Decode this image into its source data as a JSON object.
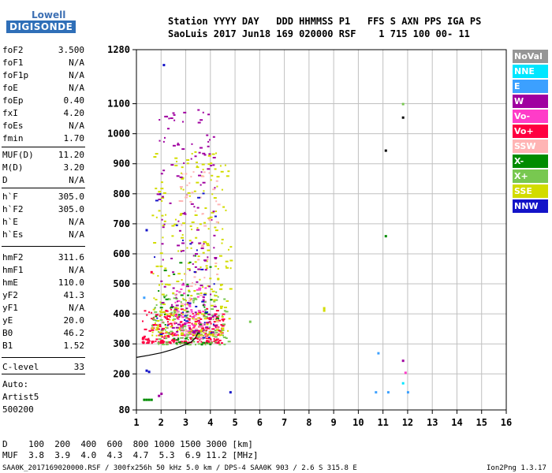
{
  "logo": {
    "line1": "Lowell",
    "line2": "DIGISONDE"
  },
  "header": {
    "row1": "Station YYYY DAY   DDD HHMMSS P1   FFS S AXN PPS IGA PS",
    "row2": "SaoLuis 2017 Jun18 169 020000 RSF    1 715 100 00- 11"
  },
  "params": [
    {
      "k": "foF2",
      "v": "3.500"
    },
    {
      "k": "foF1",
      "v": "N/A"
    },
    {
      "k": "foF1p",
      "v": "N/A"
    },
    {
      "k": "foE",
      "v": "N/A"
    },
    {
      "k": "foEp",
      "v": "0.40"
    },
    {
      "k": "fxI",
      "v": "4.20"
    },
    {
      "k": "foEs",
      "v": "N/A"
    },
    {
      "k": "fmin",
      "v": "1.70"
    },
    {
      "k": "MUF(D)",
      "v": "11.20"
    },
    {
      "k": "M(D)",
      "v": "3.20"
    },
    {
      "k": "D",
      "v": "N/A"
    },
    {
      "k": "h`F",
      "v": "305.0"
    },
    {
      "k": "h`F2",
      "v": "305.0"
    },
    {
      "k": "h`E",
      "v": "N/A"
    },
    {
      "k": "h`Es",
      "v": "N/A"
    },
    {
      "k": "hmF2",
      "v": "311.6"
    },
    {
      "k": "hmF1",
      "v": "N/A"
    },
    {
      "k": "hmE",
      "v": "110.0"
    },
    {
      "k": "yF2",
      "v": "41.3"
    },
    {
      "k": "yF1",
      "v": "N/A"
    },
    {
      "k": "yE",
      "v": "20.0"
    },
    {
      "k": "B0",
      "v": "46.2"
    },
    {
      "k": "B1",
      "v": "1.52"
    },
    {
      "k": "C-level",
      "v": "33"
    }
  ],
  "autoscale": {
    "line1": "Auto:",
    "line2": "Artist5",
    "line3": "500200"
  },
  "legend": [
    {
      "label": "NoVal",
      "color": "#969696"
    },
    {
      "label": "NNE",
      "color": "#00e6ff"
    },
    {
      "label": "E",
      "color": "#3ca0ff"
    },
    {
      "label": "W",
      "color": "#a000a0"
    },
    {
      "label": "Vo-",
      "color": "#ff3cc8"
    },
    {
      "label": "Vo+",
      "color": "#ff0040"
    },
    {
      "label": "SSW",
      "color": "#ffb4b4"
    },
    {
      "label": "X-",
      "color": "#008c00"
    },
    {
      "label": "X+",
      "color": "#78c850"
    },
    {
      "label": "SSE",
      "color": "#d2dc00"
    },
    {
      "label": "NNW",
      "color": "#1414c8"
    }
  ],
  "footer": {
    "d_row": "D    100  200  400  600  800 1000 1500 3000 [km]",
    "muf_row": "MUF  3.8  3.9  4.0  4.3  4.7  5.3  6.9 11.2 [MHz]",
    "file_left": "SAA0K_2017169020000.RSF / 300fx256h 50 kHz 5.0 km / DPS-4 SAA0K 903 / 2.6 S 315.8 E",
    "file_right": "Ion2Png 1.3.17"
  },
  "chart_data": {
    "type": "scatter",
    "xlim": [
      1,
      16
    ],
    "ylim": [
      80,
      1280
    ],
    "xticks": [
      1,
      2,
      3,
      4,
      5,
      6,
      7,
      8,
      9,
      10,
      11,
      12,
      13,
      14,
      15,
      16
    ],
    "yticks": [
      80,
      200,
      300,
      400,
      500,
      600,
      700,
      800,
      900,
      1000,
      1100,
      1280
    ],
    "grid": true,
    "legend_position": "right",
    "profile": [
      [
        1,
        255
      ],
      [
        1.5,
        262
      ],
      [
        2,
        270
      ],
      [
        2.5,
        282
      ],
      [
        2.9,
        295
      ],
      [
        3.2,
        305
      ],
      [
        3.4,
        320
      ],
      [
        3.5,
        338
      ]
    ],
    "clusters": [
      {
        "name": "Vo+",
        "color": "#ff0040",
        "x_range": [
          1.2,
          4.5
        ],
        "y_range": [
          305,
          420
        ],
        "n": 260
      },
      {
        "name": "Vo-",
        "color": "#ff3cc8",
        "x_range": [
          2.5,
          3.8
        ],
        "y_range": [
          320,
          500
        ],
        "n": 80
      },
      {
        "name": "X+",
        "color": "#78c850",
        "x_range": [
          1.6,
          4.7
        ],
        "y_range": [
          300,
          480
        ],
        "n": 130
      },
      {
        "name": "SSE",
        "color": "#d2dc00",
        "x_range": [
          1.6,
          4.8
        ],
        "y_range": [
          330,
          950
        ],
        "n": 260
      },
      {
        "name": "W",
        "color": "#a000a0",
        "x_range": [
          1.8,
          4.2
        ],
        "y_range": [
          340,
          1100
        ],
        "n": 150
      },
      {
        "name": "SSW",
        "color": "#ffb4b4",
        "x_range": [
          2.5,
          4.3
        ],
        "y_range": [
          320,
          900
        ],
        "n": 70
      },
      {
        "name": "X-",
        "color": "#008c00",
        "x_range": [
          1.7,
          4.3
        ],
        "y_range": [
          300,
          600
        ],
        "n": 40
      },
      {
        "name": "NNW",
        "color": "#1414c8",
        "x_range": [
          1.7,
          4.3
        ],
        "y_range": [
          320,
          850
        ],
        "n": 30
      }
    ],
    "points": [
      {
        "x": 8.6,
        "y": 420,
        "color": "#d2dc00"
      },
      {
        "x": 8.6,
        "y": 412,
        "color": "#d2dc00"
      },
      {
        "x": 11.1,
        "y": 945,
        "color": "#000000"
      },
      {
        "x": 11.8,
        "y": 1055,
        "color": "#000000"
      },
      {
        "x": 11.8,
        "y": 1100,
        "color": "#78c850"
      },
      {
        "x": 11.1,
        "y": 660,
        "color": "#008c00"
      },
      {
        "x": 10.8,
        "y": 270,
        "color": "#3ca0ff"
      },
      {
        "x": 11.8,
        "y": 245,
        "color": "#a000a0"
      },
      {
        "x": 11.9,
        "y": 205,
        "color": "#ff3cc8"
      },
      {
        "x": 11.8,
        "y": 170,
        "color": "#00e6ff"
      },
      {
        "x": 10.7,
        "y": 140,
        "color": "#3ca0ff"
      },
      {
        "x": 11.2,
        "y": 140,
        "color": "#3ca0ff"
      },
      {
        "x": 12.0,
        "y": 140,
        "color": "#3ca0ff"
      },
      {
        "x": 4.8,
        "y": 140,
        "color": "#1414c8"
      },
      {
        "x": 5.6,
        "y": 375,
        "color": "#78c850"
      },
      {
        "x": 1.4,
        "y": 212,
        "color": "#1414c8"
      },
      {
        "x": 1.5,
        "y": 208,
        "color": "#1414c8"
      },
      {
        "x": 1.4,
        "y": 115,
        "color": "#008c00"
      },
      {
        "x": 1.5,
        "y": 115,
        "color": "#008c00"
      },
      {
        "x": 1.6,
        "y": 115,
        "color": "#008c00"
      },
      {
        "x": 1.3,
        "y": 115,
        "color": "#008c00"
      },
      {
        "x": 1.9,
        "y": 128,
        "color": "#a000a0"
      },
      {
        "x": 2.0,
        "y": 135,
        "color": "#a000a0"
      },
      {
        "x": 1.4,
        "y": 680,
        "color": "#1414c8"
      },
      {
        "x": 1.3,
        "y": 455,
        "color": "#3ca0ff"
      },
      {
        "x": 1.6,
        "y": 540,
        "color": "#ff0040"
      },
      {
        "x": 2.1,
        "y": 1230,
        "color": "#1414c8"
      }
    ]
  }
}
